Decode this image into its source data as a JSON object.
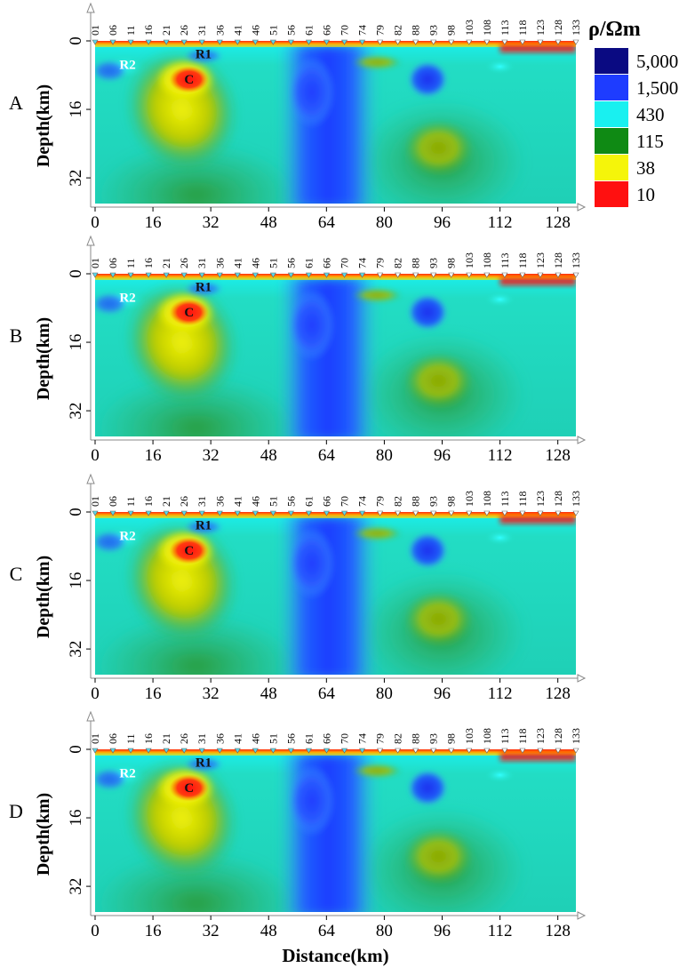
{
  "legend": {
    "title": "ρ/Ωm",
    "entries": [
      {
        "label": "5,000",
        "color": "#0a0a82"
      },
      {
        "label": "1,500",
        "color": "#1e3cff"
      },
      {
        "label": "430",
        "color": "#19f0f0"
      },
      {
        "label": "115",
        "color": "#0f8a14"
      },
      {
        "label": "38",
        "color": "#f5f50a"
      },
      {
        "label": "10",
        "color": "#ff1010"
      }
    ]
  },
  "chart_data": [
    {
      "type": "heatmap",
      "panel_label": "A",
      "ylabel": "Depth(km)",
      "xlabel": "",
      "x_ticks": [
        0,
        16,
        32,
        48,
        64,
        80,
        96,
        112,
        128
      ],
      "y_ticks": [
        0,
        16,
        32
      ],
      "xlim": [
        0,
        133
      ],
      "ylim": [
        0,
        38
      ],
      "stations": [
        "01",
        "06",
        "11",
        "16",
        "21",
        "26",
        "31",
        "36",
        "41",
        "46",
        "51",
        "56",
        "61",
        "66",
        "70",
        "74",
        "79",
        "82",
        "88",
        "93",
        "98",
        "103",
        "108",
        "113",
        "118",
        "123",
        "128",
        "133"
      ],
      "annotations": [
        "R2",
        "R1",
        "C"
      ]
    },
    {
      "type": "heatmap",
      "panel_label": "B",
      "ylabel": "Depth(km)",
      "xlabel": "",
      "x_ticks": [
        0,
        16,
        32,
        48,
        64,
        80,
        96,
        112,
        128
      ],
      "y_ticks": [
        0,
        16,
        32
      ],
      "xlim": [
        0,
        133
      ],
      "ylim": [
        0,
        38
      ],
      "stations": [
        "01",
        "06",
        "11",
        "16",
        "21",
        "26",
        "31",
        "36",
        "41",
        "46",
        "51",
        "56",
        "61",
        "66",
        "70",
        "74",
        "79",
        "82",
        "88",
        "93",
        "98",
        "103",
        "108",
        "113",
        "118",
        "123",
        "128",
        "133"
      ],
      "annotations": [
        "R2",
        "R1",
        "C"
      ]
    },
    {
      "type": "heatmap",
      "panel_label": "C",
      "ylabel": "Depth(km)",
      "xlabel": "",
      "x_ticks": [
        0,
        16,
        32,
        48,
        64,
        80,
        96,
        112,
        128
      ],
      "y_ticks": [
        0,
        16,
        32
      ],
      "xlim": [
        0,
        133
      ],
      "ylim": [
        0,
        38
      ],
      "stations": [
        "01",
        "06",
        "11",
        "16",
        "21",
        "26",
        "31",
        "36",
        "41",
        "46",
        "51",
        "56",
        "61",
        "66",
        "70",
        "74",
        "79",
        "82",
        "88",
        "93",
        "98",
        "103",
        "108",
        "113",
        "118",
        "123",
        "128",
        "133"
      ],
      "annotations": [
        "R2",
        "R1",
        "C"
      ]
    },
    {
      "type": "heatmap",
      "panel_label": "D",
      "ylabel": "Depth(km)",
      "xlabel": "Distance(km)",
      "x_ticks": [
        0,
        16,
        32,
        48,
        64,
        80,
        96,
        112,
        128
      ],
      "y_ticks": [
        0,
        16,
        32
      ],
      "xlim": [
        0,
        133
      ],
      "ylim": [
        0,
        38
      ],
      "stations": [
        "01",
        "06",
        "11",
        "16",
        "21",
        "26",
        "31",
        "36",
        "41",
        "46",
        "51",
        "56",
        "61",
        "66",
        "70",
        "74",
        "79",
        "82",
        "88",
        "93",
        "98",
        "103",
        "108",
        "113",
        "118",
        "123",
        "128",
        "133"
      ],
      "annotations": [
        "R2",
        "R1",
        "C"
      ]
    }
  ]
}
